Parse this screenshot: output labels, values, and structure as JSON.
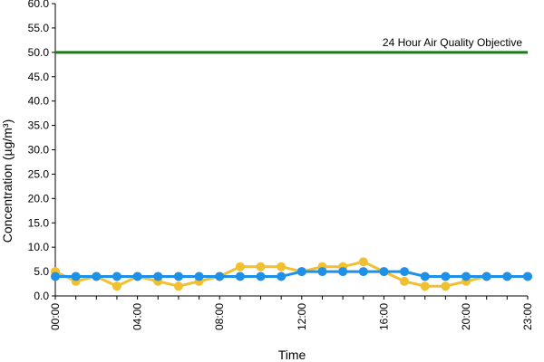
{
  "chart_data": {
    "type": "line",
    "title": "",
    "xlabel": "Time",
    "ylabel": "Concentration (µg/m³)",
    "ylim": [
      0,
      60
    ],
    "y_ticks": [
      "0.0",
      "5.0",
      "10.0",
      "15.0",
      "20.0",
      "25.0",
      "30.0",
      "35.0",
      "40.0",
      "45.0",
      "50.0",
      "55.0",
      "60.0"
    ],
    "x": [
      "00:00",
      "01:00",
      "02:00",
      "03:00",
      "04:00",
      "05:00",
      "06:00",
      "07:00",
      "08:00",
      "09:00",
      "10:00",
      "11:00",
      "12:00",
      "13:00",
      "14:00",
      "15:00",
      "16:00",
      "17:00",
      "18:00",
      "19:00",
      "20:00",
      "21:00",
      "22:00",
      "23:00"
    ],
    "x_tick_labels": [
      "00:00",
      "04:00",
      "08:00",
      "12:00",
      "16:00",
      "20:00",
      "23:00"
    ],
    "grid": false,
    "series": [
      {
        "color": "#f0c030",
        "values": [
          5,
          3,
          4,
          2,
          4,
          3,
          2,
          3,
          4,
          6,
          6,
          6,
          5,
          6,
          6,
          7,
          5,
          3,
          2,
          2,
          3,
          4,
          4,
          4
        ]
      },
      {
        "color": "#1e90e8",
        "values": [
          4,
          4,
          4,
          4,
          4,
          4,
          4,
          4,
          4,
          4,
          4,
          4,
          5,
          5,
          5,
          5,
          5,
          5,
          4,
          4,
          4,
          4,
          4,
          4
        ]
      }
    ],
    "reference_lines": [
      {
        "label": "24 Hour Air Quality Objective",
        "value": 50,
        "color": "#1a7a1a"
      }
    ]
  }
}
